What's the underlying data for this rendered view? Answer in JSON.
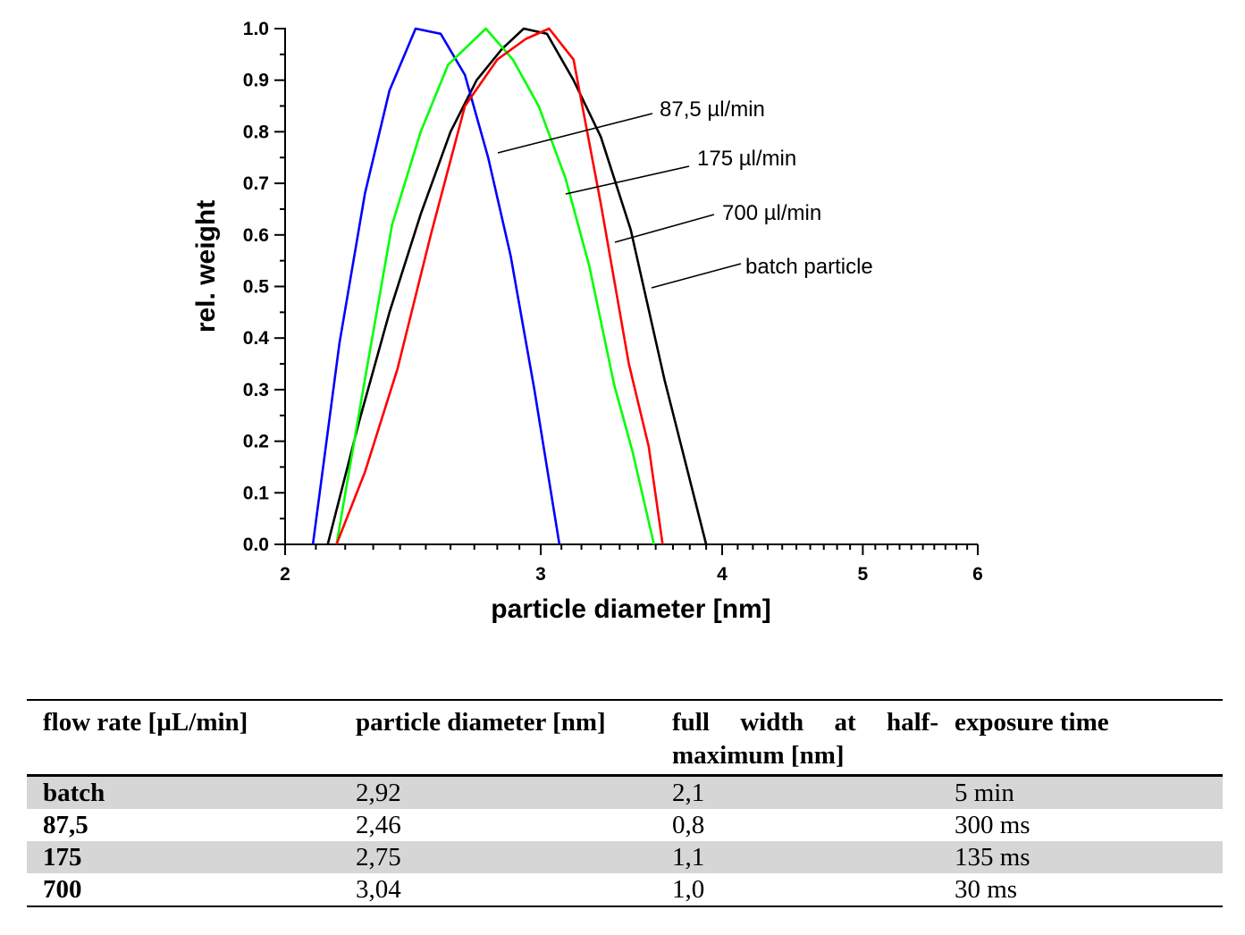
{
  "chart_data": {
    "type": "line",
    "xlabel": "particle diameter [nm]",
    "ylabel": "rel. weight",
    "xscale": "log",
    "xlim": [
      2,
      6
    ],
    "ylim": [
      0,
      1.0
    ],
    "x_ticks": [
      "2",
      "3",
      "4",
      "5",
      "6"
    ],
    "y_ticks": [
      "0.0",
      "0.1",
      "0.2",
      "0.3",
      "0.4",
      "0.5",
      "0.6",
      "0.7",
      "0.8",
      "0.9",
      "1.0"
    ],
    "series": [
      {
        "name": "87,5 µl/min",
        "color": "#0000ff",
        "x": [
          2.09,
          2.18,
          2.27,
          2.36,
          2.46,
          2.56,
          2.66,
          2.76,
          2.86,
          2.97,
          3.09
        ],
        "y": [
          0.0,
          0.39,
          0.68,
          0.88,
          1.0,
          0.99,
          0.91,
          0.75,
          0.56,
          0.3,
          0.0
        ]
      },
      {
        "name": "175 µl/min",
        "color": "#00ff00",
        "x": [
          2.17,
          2.27,
          2.37,
          2.48,
          2.59,
          2.75,
          2.87,
          2.99,
          3.12,
          3.24,
          3.37,
          3.47,
          3.59
        ],
        "y": [
          0.0,
          0.32,
          0.62,
          0.8,
          0.93,
          1.0,
          0.94,
          0.85,
          0.71,
          0.54,
          0.31,
          0.18,
          0.0
        ]
      },
      {
        "name": "700 µl/min",
        "color": "#ff0000",
        "x": [
          2.17,
          2.27,
          2.39,
          2.52,
          2.66,
          2.8,
          2.93,
          3.04,
          3.16,
          3.3,
          3.45,
          3.56,
          3.64
        ],
        "y": [
          0.0,
          0.14,
          0.34,
          0.6,
          0.85,
          0.94,
          0.98,
          1.0,
          0.94,
          0.66,
          0.35,
          0.19,
          0.0
        ]
      },
      {
        "name": "batch particle",
        "color": "#000000",
        "x": [
          2.14,
          2.25,
          2.36,
          2.48,
          2.6,
          2.71,
          2.82,
          2.92,
          3.03,
          3.16,
          3.3,
          3.46,
          3.65,
          3.9
        ],
        "y": [
          0.0,
          0.24,
          0.45,
          0.64,
          0.8,
          0.9,
          0.96,
          1.0,
          0.99,
          0.9,
          0.79,
          0.61,
          0.32,
          0.0
        ]
      }
    ],
    "annotations": [
      "87,5 µl/min",
      "175 µl/min",
      "700 µl/min",
      "batch particle"
    ],
    "grid": false,
    "legend": "none"
  },
  "table": {
    "headers": [
      "flow rate [µL/min]",
      "particle diameter [nm]",
      "full width at half-maximum [nm]",
      "exposure time"
    ],
    "header_fwhm_line1": "full width at half-",
    "header_fwhm_line2": "maximum [nm]",
    "rows": [
      [
        "batch",
        "2,92",
        "2,1",
        "5 min"
      ],
      [
        "87,5",
        "2,46",
        "0,8",
        "300 ms"
      ],
      [
        "175",
        "2,75",
        "1,1",
        "135 ms"
      ],
      [
        "700",
        "3,04",
        "1,0",
        "30 ms"
      ]
    ],
    "shade_color": "#d6d6d6"
  }
}
